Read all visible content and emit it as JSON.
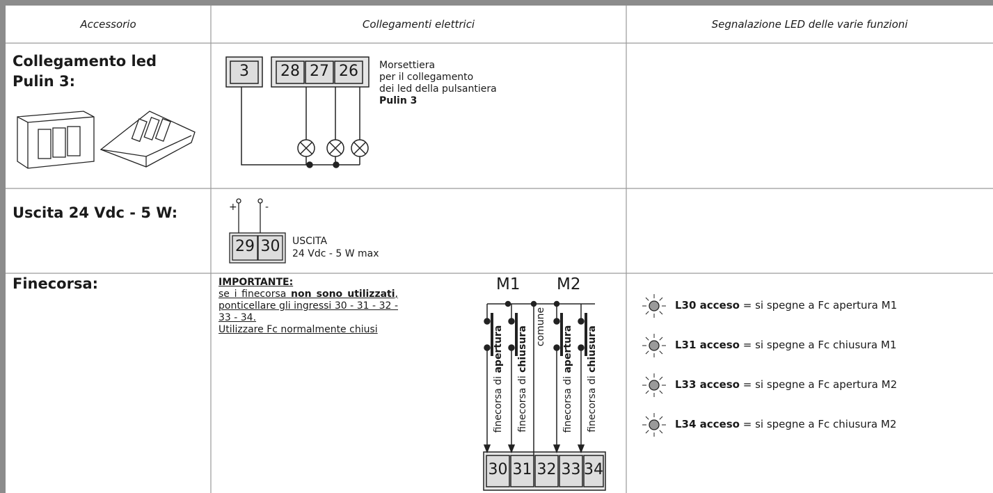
{
  "header": {
    "columns": [
      "Accessorio",
      "Collegamenti elettrici",
      "Segnalazione LED delle varie funzioni"
    ]
  },
  "rows": [
    {
      "accessory": "Collegamento led Pulin 3:",
      "terminals": [
        "3",
        "28",
        "27",
        "26"
      ],
      "description": [
        "Morsettiera",
        "per il collegamento",
        "dei led della pulsantiera",
        "Pulin 3"
      ]
    },
    {
      "accessory": "Uscita 24 Vdc - 5 W:",
      "polarity": [
        "+",
        "-"
      ],
      "terminals": [
        "29",
        "30"
      ],
      "description": [
        "USCITA",
        "24 Vdc - 5 W max"
      ]
    },
    {
      "accessory": "Finecorsa:",
      "note": {
        "title": "IMPORTANTE:",
        "text": "se i finecorsa ",
        "bold": "non sono utilizzati",
        "text_end": ", ponticellare gli ingressi 30 - 31 - 32 - 33 - 34.",
        "closing": "Utilizzare Fc normalmente chiusi"
      },
      "motors": [
        "M1",
        "M2"
      ],
      "switches": [
        {
          "prefix": "finecorsa di ",
          "kind": "apertura"
        },
        {
          "prefix": "finecorsa di ",
          "kind": "chiusura"
        },
        {
          "prefix": "finecorsa di ",
          "kind": "apertura"
        },
        {
          "prefix": "finecorsa di ",
          "kind": "chiusura"
        }
      ],
      "common": "comune",
      "terminals": [
        "30",
        "31",
        "32",
        "33",
        "34"
      ],
      "leds": [
        {
          "label": "L30 acceso",
          "text": " = si spegne a Fc apertura M1"
        },
        {
          "label": "L31 acceso",
          "text": " = si spegne a Fc chiusura M1"
        },
        {
          "label": "L33 acceso",
          "text": " = si spegne a Fc apertura M2"
        },
        {
          "label": "L34 acceso",
          "text": " = si spegne a Fc chiusura M2"
        }
      ]
    }
  ]
}
